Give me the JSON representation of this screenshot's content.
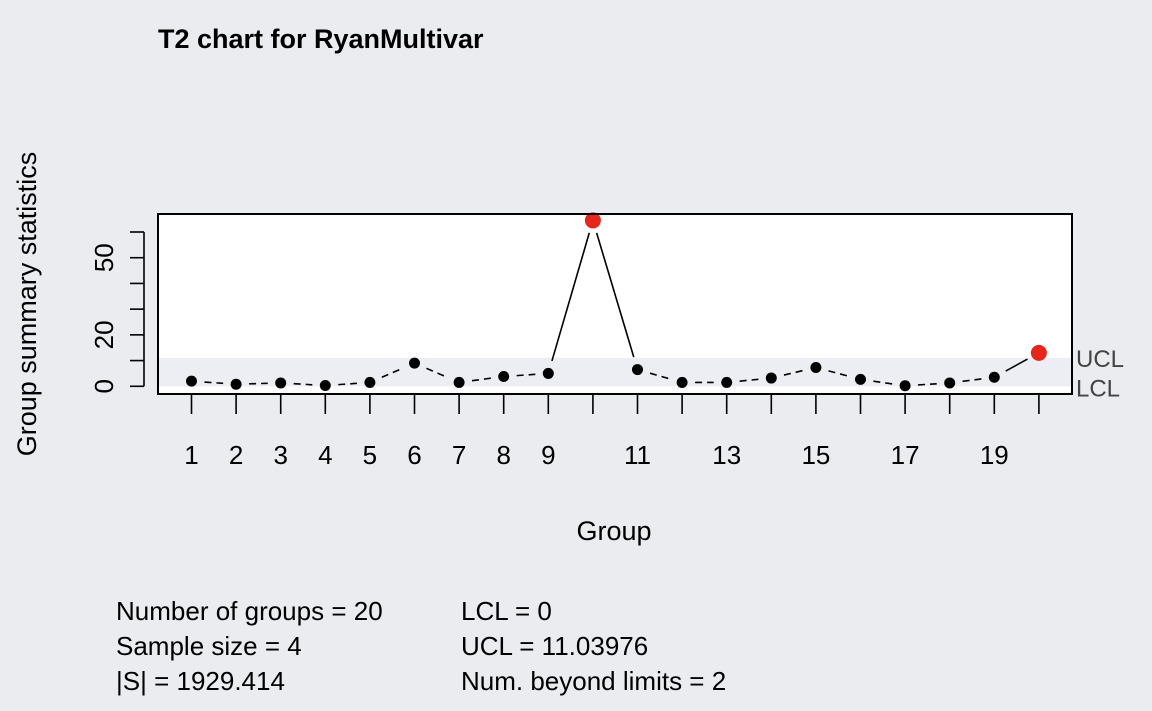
{
  "chart_data": {
    "type": "line",
    "title": "T2 chart for RyanMultivar",
    "xlabel": "Group",
    "ylabel": "Group summary statistics",
    "x": [
      1,
      2,
      3,
      4,
      5,
      6,
      7,
      8,
      9,
      10,
      11,
      12,
      13,
      14,
      15,
      16,
      17,
      18,
      19,
      20
    ],
    "series": [
      {
        "values": [
          2.0,
          0.8,
          1.3,
          0.3,
          1.5,
          9.0,
          1.5,
          3.8,
          5.0,
          64.5,
          6.5,
          1.5,
          1.5,
          3.2,
          7.3,
          2.7,
          0.2,
          1.3,
          3.5,
          13.0
        ]
      }
    ],
    "out_of_control": [
      10,
      20
    ],
    "ylim": [
      -3,
      67
    ],
    "yticks": [
      0,
      20,
      50
    ],
    "yminor_ticks": [
      0,
      10,
      20,
      30,
      40,
      50,
      60
    ],
    "xtick_labels": [
      "1",
      "2",
      "3",
      "4",
      "5",
      "6",
      "7",
      "8",
      "9",
      "11",
      "13",
      "15",
      "17",
      "19"
    ],
    "xtick_label_positions": [
      1,
      2,
      3,
      4,
      5,
      6,
      7,
      8,
      9,
      11,
      13,
      15,
      17,
      19
    ],
    "limits": {
      "ucl": 11.03976,
      "lcl": 0,
      "ucl_label": "UCL",
      "lcl_label": "LCL"
    },
    "colors": {
      "point": "#000000",
      "violation": "#e8251a",
      "band": "#eceef3",
      "plot_bg": "#ffffff",
      "page_bg": "#ebecf0"
    }
  },
  "stats": {
    "left": [
      "Number of groups = 20",
      "Sample size = 4",
      "|S| = 1929.414"
    ],
    "right": [
      "LCL = 0",
      "UCL = 11.03976",
      "Num. beyond limits = 2"
    ]
  }
}
